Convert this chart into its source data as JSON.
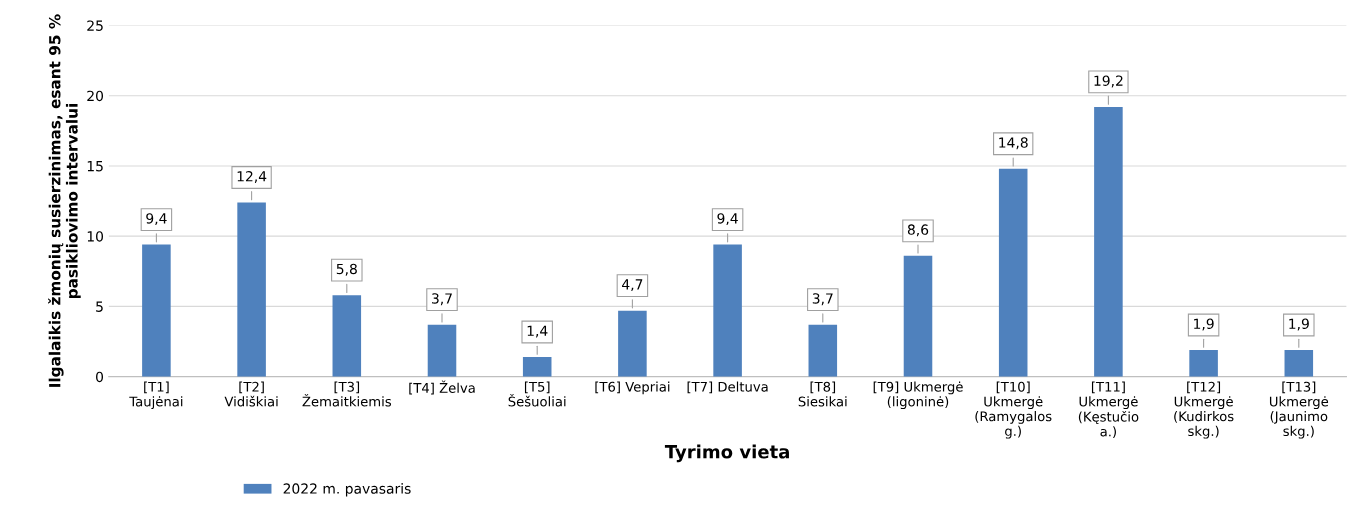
{
  "chart_data": {
    "type": "bar",
    "xlabel": "Tyrimo vieta",
    "ylabel": "Ilgalaikis žmonių susierzinimas, esant 95 % pasikliovimo intervalui",
    "categories": [
      "[T1] Taujėnai",
      "[T2] Vidiškiai",
      "[T3] Žemaitkiemis",
      "[T4] Želva",
      "[T5] Šešuoliai",
      "[T6] Vepriai",
      "[T7] Deltuva",
      "[T8] Siesikai",
      "[T9] Ukmergė (ligoninė)",
      "[T10] Ukmergė (Ramygalos g.)",
      "[T11] Ukmergė (Kęstučio a.)",
      "[T12] Ukmergė (Kudirkos skg.)",
      "[T13] Ukmergė (Jaunimo skg.)"
    ],
    "series": [
      {
        "name": "2022 m. pavasaris",
        "color": "#4f81bd",
        "values": [
          9.4,
          12.4,
          5.8,
          3.7,
          1.4,
          4.7,
          9.4,
          3.7,
          8.6,
          14.8,
          19.2,
          1.9,
          1.9
        ],
        "value_labels": [
          "9,4",
          "12,4",
          "5,8",
          "3,7",
          "1,4",
          "4,7",
          "9,4",
          "3,7",
          "8,6",
          "14,8",
          "19,2",
          "1,9",
          "1,9"
        ]
      }
    ],
    "ylim": [
      0,
      25
    ],
    "yticks": [
      0,
      5,
      10,
      15,
      20,
      25
    ],
    "grid": "y",
    "legend": "bottom left"
  }
}
